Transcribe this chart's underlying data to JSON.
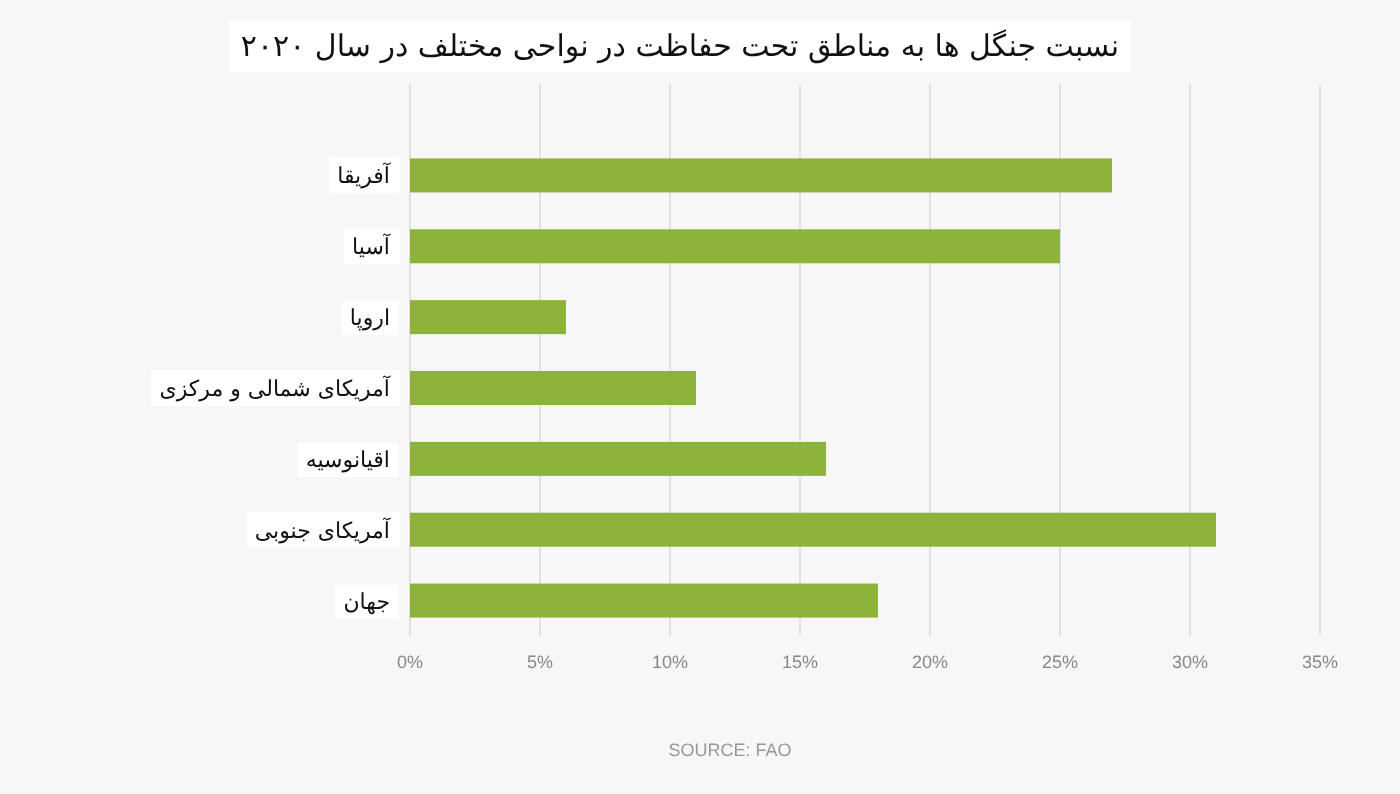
{
  "chart_data": {
    "type": "bar",
    "orientation": "horizontal",
    "title": "نسبت جنگل ها به مناطق تحت حفاظت در نواحی مختلف در سال ۲۰۲۰",
    "categories": [
      "آفریقا",
      "آسیا",
      "اروپا",
      "آمریکای شمالی و مرکزی",
      "اقیانوسیه",
      "آمریکای جنوبی",
      "جهان"
    ],
    "values": [
      27,
      25,
      6,
      11,
      16,
      31,
      18
    ],
    "color": "#8db33a",
    "xlim": [
      0,
      35
    ],
    "xticks": [
      {
        "value": 0,
        "label": "0%"
      },
      {
        "value": 5,
        "label": "5%"
      },
      {
        "value": 10,
        "label": "10%"
      },
      {
        "value": 15,
        "label": "15%"
      },
      {
        "value": 20,
        "label": "20%"
      },
      {
        "value": 25,
        "label": "25%"
      },
      {
        "value": 30,
        "label": "30%"
      },
      {
        "value": 35,
        "label": "35%"
      }
    ],
    "grid": "x",
    "annotations": [
      "SOURCE: FAO"
    ]
  }
}
